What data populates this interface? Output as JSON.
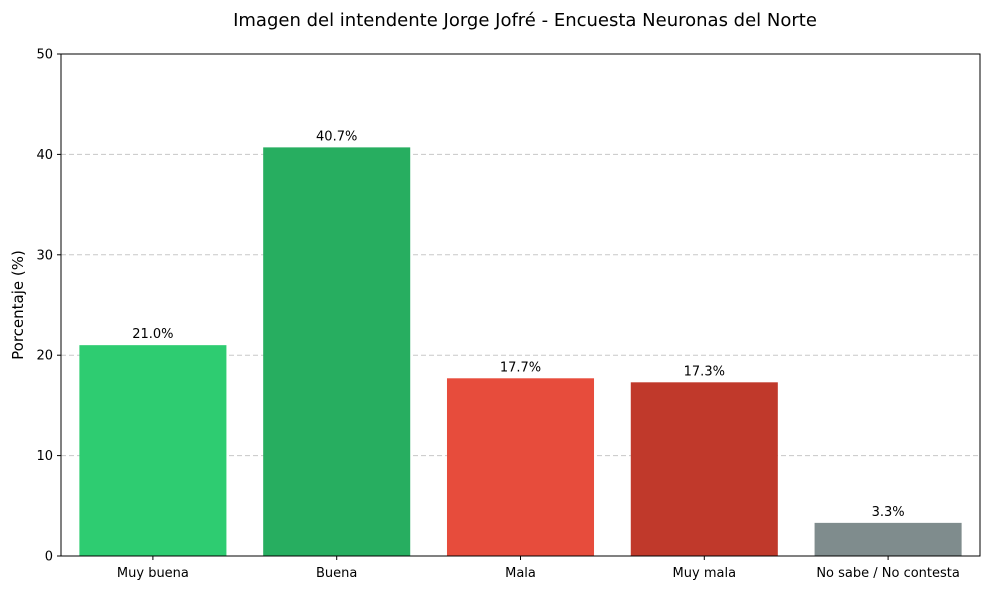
{
  "chart_data": {
    "type": "bar",
    "title": "Imagen del intendente Jorge Jofré - Encuesta Neuronas del Norte",
    "xlabel": "",
    "ylabel": "Porcentaje (%)",
    "ylim": [
      0,
      50
    ],
    "yticks": [
      0,
      10,
      20,
      30,
      40,
      50
    ],
    "grid": "horizontal-dashed",
    "legend": "none",
    "categories": [
      "Muy buena",
      "Buena",
      "Mala",
      "Muy mala",
      "No sabe / No contesta"
    ],
    "values": [
      21.0,
      40.7,
      17.7,
      17.3,
      3.3
    ],
    "value_labels": [
      "21.0%",
      "40.7%",
      "17.7%",
      "17.3%",
      "3.3%"
    ],
    "colors": [
      "#2ecc71",
      "#27ae60",
      "#e74c3c",
      "#c0392b",
      "#7f8c8d"
    ]
  }
}
